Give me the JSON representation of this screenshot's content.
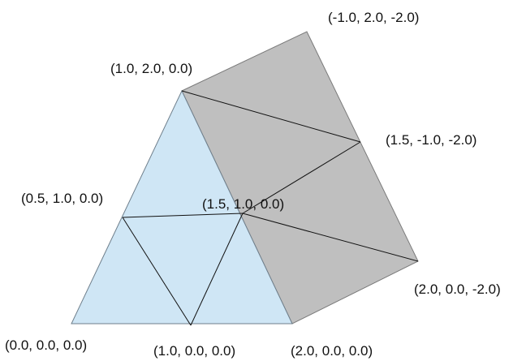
{
  "colors": {
    "triangle_fill": "#cfe6f5",
    "triangle_edge": "#6f7f8c",
    "quad_fill": "#bfbfbf",
    "quad_edge": "#7a7a7a",
    "line": "#111111",
    "label": "#111111"
  },
  "labels": {
    "v_000": "(0.0, 0.0, 0.0)",
    "v_100": "(1.0, 0.0, 0.0)",
    "v_200": "(2.0, 0.0, 0.0)",
    "v_05_10": "(0.5, 1.0, 0.0)",
    "v_15_10": "(1.5, 1.0, 0.0)",
    "v_10_20": "(1.0, 2.0, 0.0)",
    "v_m1_2_m2": "(-1.0, 2.0, -2.0)",
    "v_15_m1_m2": "(1.5, -1.0, -2.0)",
    "v_2_0_m2": "(2.0, 0.0, -2.0)"
  }
}
